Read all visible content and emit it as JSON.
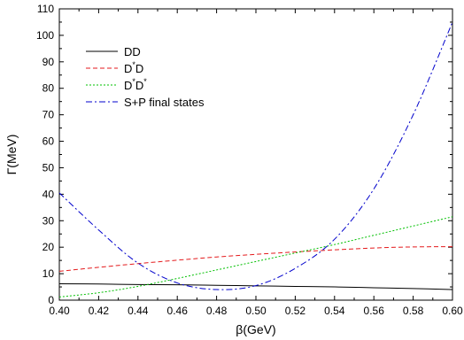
{
  "chart_data": {
    "type": "line",
    "title": "",
    "xlabel": "β(GeV)",
    "ylabel": "Γ(MeV)",
    "xlim": [
      0.4,
      0.6
    ],
    "ylim": [
      0,
      110
    ],
    "xticks": [
      "0.40",
      "0.42",
      "0.44",
      "0.46",
      "0.48",
      "0.50",
      "0.52",
      "0.54",
      "0.56",
      "0.58",
      "0.60"
    ],
    "yticks": [
      "0",
      "10",
      "20",
      "30",
      "40",
      "50",
      "60",
      "70",
      "80",
      "90",
      "100",
      "110"
    ],
    "grid": false,
    "legend_position": "top-left",
    "x": [
      0.4,
      0.42,
      0.44,
      0.46,
      0.48,
      0.5,
      0.52,
      0.54,
      0.56,
      0.58,
      0.6
    ],
    "series": [
      {
        "name": "DD",
        "color": "#000000",
        "dash": "solid",
        "values": [
          6.2,
          6.1,
          5.9,
          5.8,
          5.6,
          5.4,
          5.2,
          5.0,
          4.7,
          4.4,
          4.0
        ]
      },
      {
        "name": "D*D",
        "name_base": "D",
        "name_sup": "*",
        "name_rest": "D",
        "color": "#e41a1c",
        "dash": "dashed",
        "values": [
          10.9,
          12.4,
          13.8,
          15.1,
          16.3,
          17.3,
          18.2,
          19.0,
          19.7,
          20.1,
          20.2
        ]
      },
      {
        "name": "D*D*",
        "name_base": "D",
        "name_sup": "*",
        "name_rest": "D",
        "name_sup2": "*",
        "color": "#00c000",
        "dash": "dotted",
        "values": [
          1.2,
          2.8,
          5.2,
          8.2,
          11.4,
          14.6,
          17.8,
          21.0,
          24.5,
          28.0,
          31.5
        ]
      },
      {
        "name": "S+P final states",
        "color": "#0000cc",
        "dash": "dashdot",
        "values": [
          40.5,
          26.5,
          14.0,
          6.5,
          4.0,
          5.5,
          12.0,
          23.0,
          42.0,
          70.0,
          105.0
        ]
      }
    ]
  }
}
